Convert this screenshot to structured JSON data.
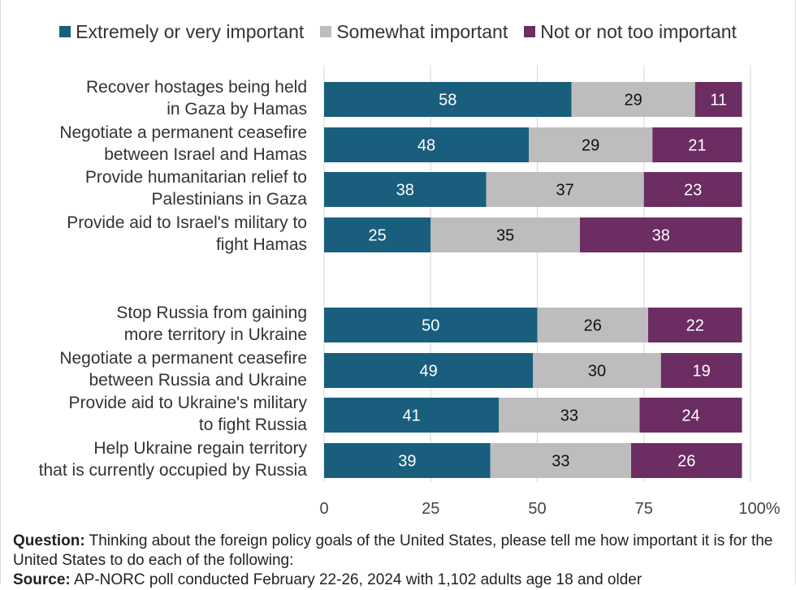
{
  "chart_data": {
    "type": "bar",
    "orientation": "horizontal",
    "stacked": true,
    "categories": [
      [
        "Recover hostages being held",
        "in Gaza by Hamas"
      ],
      [
        "Negotiate a permanent ceasefire",
        "between Israel and Hamas"
      ],
      [
        "Provide humanitarian relief to",
        "Palestinians in Gaza"
      ],
      [
        "Provide aid to Israel's military to",
        "fight Hamas"
      ],
      [
        "Stop Russia from gaining",
        "more territory in Ukraine "
      ],
      [
        "Negotiate a permanent ceasefire ",
        "between Russia and Ukraine"
      ],
      [
        "Provide aid to Ukraine's military",
        "to fight Russia "
      ],
      [
        "Help Ukraine regain territory",
        "that is currently occupied by Russia"
      ]
    ],
    "series": [
      {
        "name": "Extremely or very important",
        "color": "#1a5e7e",
        "label_color": "#ffffff",
        "values": [
          58,
          48,
          38,
          25,
          50,
          49,
          41,
          39
        ]
      },
      {
        "name": "Somewhat important",
        "color": "#bdbdbd",
        "label_color": "#111111",
        "values": [
          29,
          29,
          37,
          35,
          26,
          30,
          33,
          33
        ]
      },
      {
        "name": "Not or not too important",
        "color": "#6b2d62",
        "label_color": "#ffffff",
        "values": [
          11,
          21,
          23,
          38,
          22,
          19,
          24,
          26
        ]
      }
    ],
    "xlim": [
      0,
      100
    ],
    "x_ticks": [
      "0",
      "25",
      "50",
      "75",
      "100%"
    ],
    "grid": true,
    "legend": "top"
  },
  "footer": {
    "question_label": "Question:",
    "question_text": " Thinking about the foreign policy goals of the United States, please tell me how important it is for the United States to do each of the following:",
    "source_label": "Source:",
    "source_text": " AP-NORC poll conducted February 22-26, 2024 with 1,102 adults age 18 and older"
  }
}
